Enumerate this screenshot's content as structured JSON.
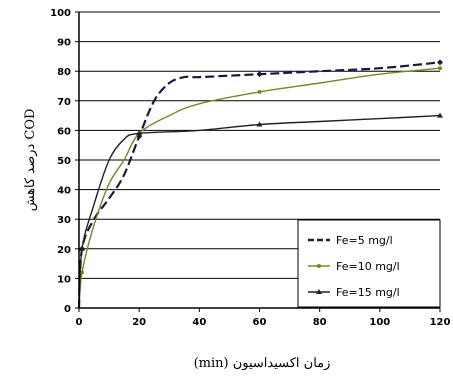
{
  "chart_data": {
    "type": "line",
    "xlabel": "زمان اکسیداسیون (min)",
    "ylabel": "COD درصد کاهش",
    "xlim": [
      0,
      120
    ],
    "ylim": [
      0,
      100
    ],
    "x_ticks": [
      "0",
      "20",
      "40",
      "60",
      "80",
      "100",
      "120"
    ],
    "y_ticks": [
      "0",
      "10",
      "20",
      "30",
      "40",
      "50",
      "60",
      "70",
      "80",
      "90",
      "100"
    ],
    "grid": "horizontal",
    "legend_position": "bottom-right",
    "series": [
      {
        "name": "Fe=5  mg/l",
        "style": "dashed",
        "marker": "diamond",
        "color": "#1a1a3a",
        "x": [
          0,
          1,
          5,
          10,
          15,
          20,
          25,
          30,
          35,
          40,
          60,
          80,
          100,
          120
        ],
        "y": [
          0,
          20,
          30,
          37,
          45,
          58,
          70,
          76,
          78,
          78,
          79,
          80,
          81,
          83
        ]
      },
      {
        "name": "Fe=10 mg/l",
        "style": "solid",
        "marker": "circle",
        "color": "#6b8e23",
        "x": [
          0,
          1,
          5,
          10,
          15,
          20,
          30,
          40,
          60,
          80,
          100,
          120
        ],
        "y": [
          0,
          12,
          28,
          42,
          50,
          59,
          65,
          69,
          73,
          76,
          79,
          81
        ]
      },
      {
        "name": "Fe=15 mg/l",
        "style": "solid",
        "marker": "triangle",
        "color": "#222222",
        "x": [
          0,
          1,
          5,
          10,
          15,
          20,
          40,
          60,
          80,
          100,
          120
        ],
        "y": [
          0,
          20,
          35,
          50,
          57,
          59,
          60,
          62,
          63,
          64,
          65
        ]
      }
    ]
  }
}
